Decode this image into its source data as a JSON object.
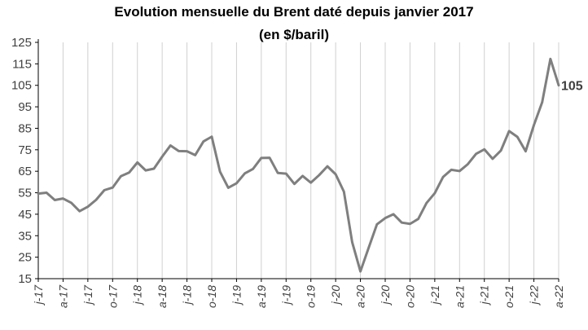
{
  "chart_data": {
    "type": "line",
    "title": "Evolution mensuelle du Brent daté depuis janvier 2017",
    "subtitle": "(en $/baril)",
    "xlabel": "",
    "ylabel": "",
    "ylim": [
      15,
      125
    ],
    "yticks": [
      15,
      25,
      35,
      45,
      55,
      65,
      75,
      85,
      95,
      105,
      115,
      125
    ],
    "grid": "vertical",
    "end_label": "105",
    "x": [
      "2017-01",
      "2017-02",
      "2017-03",
      "2017-04",
      "2017-05",
      "2017-06",
      "2017-07",
      "2017-08",
      "2017-09",
      "2017-10",
      "2017-11",
      "2017-12",
      "2018-01",
      "2018-02",
      "2018-03",
      "2018-04",
      "2018-05",
      "2018-06",
      "2018-07",
      "2018-08",
      "2018-09",
      "2018-10",
      "2018-11",
      "2018-12",
      "2019-01",
      "2019-02",
      "2019-03",
      "2019-04",
      "2019-05",
      "2019-06",
      "2019-07",
      "2019-08",
      "2019-09",
      "2019-10",
      "2019-11",
      "2019-12",
      "2020-01",
      "2020-02",
      "2020-03",
      "2020-04",
      "2020-05",
      "2020-06",
      "2020-07",
      "2020-08",
      "2020-09",
      "2020-10",
      "2020-11",
      "2020-12",
      "2021-01",
      "2021-02",
      "2021-03",
      "2021-04",
      "2021-05",
      "2021-06",
      "2021-07",
      "2021-08",
      "2021-09",
      "2021-10",
      "2021-11",
      "2021-12",
      "2022-01",
      "2022-02",
      "2022-03",
      "2022-04"
    ],
    "x_tick_labels": [
      "j-17",
      "a-17",
      "j-17",
      "o-17",
      "j-18",
      "a-18",
      "j-18",
      "o-18",
      "j-19",
      "a-19",
      "j-19",
      "o-19",
      "j-20",
      "a-20",
      "j-20",
      "o-20",
      "j-21",
      "a-21",
      "j-21",
      "o-21",
      "j-22",
      "a-22"
    ],
    "series": [
      {
        "values": [
          54.6,
          55,
          51.6,
          52.3,
          50.3,
          46.4,
          48.5,
          51.7,
          56.2,
          57.4,
          62.7,
          64.4,
          69.1,
          65.4,
          66.2,
          71.8,
          77,
          74.4,
          74.3,
          72.5,
          78.9,
          81.1,
          64.8,
          57.3,
          59.4,
          64,
          66.1,
          71.2,
          71.3,
          64.2,
          63.9,
          59.1,
          62.8,
          59.7,
          63.2,
          67.3,
          63.6,
          55.5,
          32,
          18.4,
          29.4,
          40.3,
          43.2,
          45,
          41.1,
          40.5,
          42.8,
          50.2,
          54.8,
          62.3,
          65.7,
          65.1,
          68.3,
          73.1,
          75.2,
          70.8,
          74.6,
          83.7,
          81,
          74.3,
          86.5,
          97.1,
          117.3,
          105
        ]
      }
    ]
  }
}
